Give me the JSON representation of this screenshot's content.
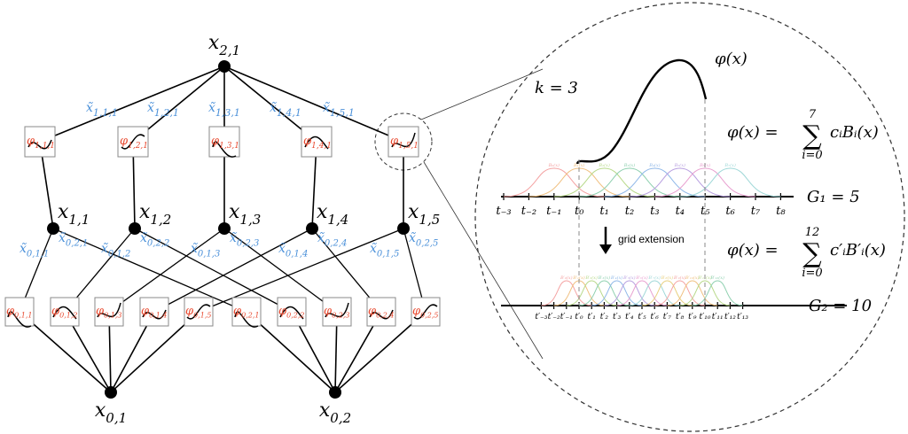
{
  "network": {
    "top_node": {
      "base": "x",
      "sub": "2,1"
    },
    "layer1": {
      "functions": [
        {
          "base": "φ",
          "sub": "1,1,1"
        },
        {
          "base": "φ",
          "sub": "1,2,1"
        },
        {
          "base": "φ",
          "sub": "1,3,1"
        },
        {
          "base": "φ",
          "sub": "1,4,1"
        },
        {
          "base": "φ",
          "sub": "1,5,1"
        }
      ],
      "edges": [
        {
          "base": "x̃",
          "sub": "1,1,1"
        },
        {
          "base": "x̃",
          "sub": "1,2,1"
        },
        {
          "base": "x̃",
          "sub": "1,3,1"
        },
        {
          "base": "x̃",
          "sub": "1,4,1"
        },
        {
          "base": "x̃",
          "sub": "1,5,1"
        }
      ],
      "nodes": [
        {
          "base": "x",
          "sub": "1,1"
        },
        {
          "base": "x",
          "sub": "1,2"
        },
        {
          "base": "x",
          "sub": "1,3"
        },
        {
          "base": "x",
          "sub": "1,4"
        },
        {
          "base": "x",
          "sub": "1,5"
        }
      ]
    },
    "layer0": {
      "functions": [
        {
          "base": "φ",
          "sub": "0,1,1"
        },
        {
          "base": "φ",
          "sub": "0,1,2"
        },
        {
          "base": "φ",
          "sub": "0,1,3"
        },
        {
          "base": "φ",
          "sub": "0,1,4"
        },
        {
          "base": "φ",
          "sub": "0,1,5"
        },
        {
          "base": "φ",
          "sub": "0,2,1"
        },
        {
          "base": "φ",
          "sub": "0,2,2"
        },
        {
          "base": "φ",
          "sub": "0,2,3"
        },
        {
          "base": "φ",
          "sub": "0,2,4"
        },
        {
          "base": "φ",
          "sub": "0,2,5"
        }
      ],
      "edges": [
        {
          "base": "x̃",
          "sub": "0,1,1"
        },
        {
          "base": "x̃",
          "sub": "0,1,2"
        },
        {
          "base": "x̃",
          "sub": "0,1,3"
        },
        {
          "base": "x̃",
          "sub": "0,1,4"
        },
        {
          "base": "x̃",
          "sub": "0,1,5"
        },
        {
          "base": "x̃",
          "sub": "0,2,1"
        },
        {
          "base": "x̃",
          "sub": "0,2,2"
        },
        {
          "base": "x̃",
          "sub": "0,2,3"
        },
        {
          "base": "x̃",
          "sub": "0,2,4"
        },
        {
          "base": "x̃",
          "sub": "0,2,5"
        }
      ],
      "nodes": [
        {
          "base": "x",
          "sub": "0,1"
        },
        {
          "base": "x",
          "sub": "0,2"
        }
      ]
    }
  },
  "spline": {
    "k_label": "k = 3",
    "curve_label": "φ(x)",
    "coarse": {
      "formula": {
        "lhs": "φ(x) =",
        "upper": "7",
        "lower": "i=0",
        "term": "cᵢBᵢ(x)"
      },
      "grid_label": "G₁ = 5",
      "ticks": [
        "t₋₃",
        "t₋₂",
        "t₋₁",
        "t₀",
        "t₁",
        "t₂",
        "t₃",
        "t₄",
        "t₅",
        "t₆",
        "t₇",
        "t₈"
      ],
      "basis_labels": [
        "B₀(x)",
        "B₁(x)",
        "B₂(x)",
        "B₃(x)",
        "B₄(x)",
        "B₅(x)",
        "B₆(x)",
        "B₇(x)"
      ]
    },
    "extension_label": "grid extension",
    "fine": {
      "formula": {
        "lhs": "φ(x) =",
        "upper": "12",
        "lower": "i=0",
        "term": "c′ᵢB′ᵢ(x)"
      },
      "grid_label": "G₂ = 10",
      "ticks": [
        "t′₋₃",
        "t′₋₂",
        "t′₋₁",
        "t′₀",
        "t′₁",
        "t′₂",
        "t′₃",
        "t′₄",
        "t′₅",
        "t′₆",
        "t′₇",
        "t′₈",
        "t′₉",
        "t′₁₀",
        "t′₁₁",
        "t′₁₂",
        "t′₁₃"
      ],
      "basis_labels": [
        "B′₀(x)",
        "B′₁(x)",
        "B′₂(x)",
        "B′₃(x)",
        "B′₄(x)",
        "B′₅(x)",
        "B′₆(x)",
        "B′₇(x)",
        "B′₈(x)",
        "B′₉(x)",
        "B′₁₀(x)",
        "B′₁₁(x)",
        "B′₁₂(x)"
      ]
    }
  }
}
